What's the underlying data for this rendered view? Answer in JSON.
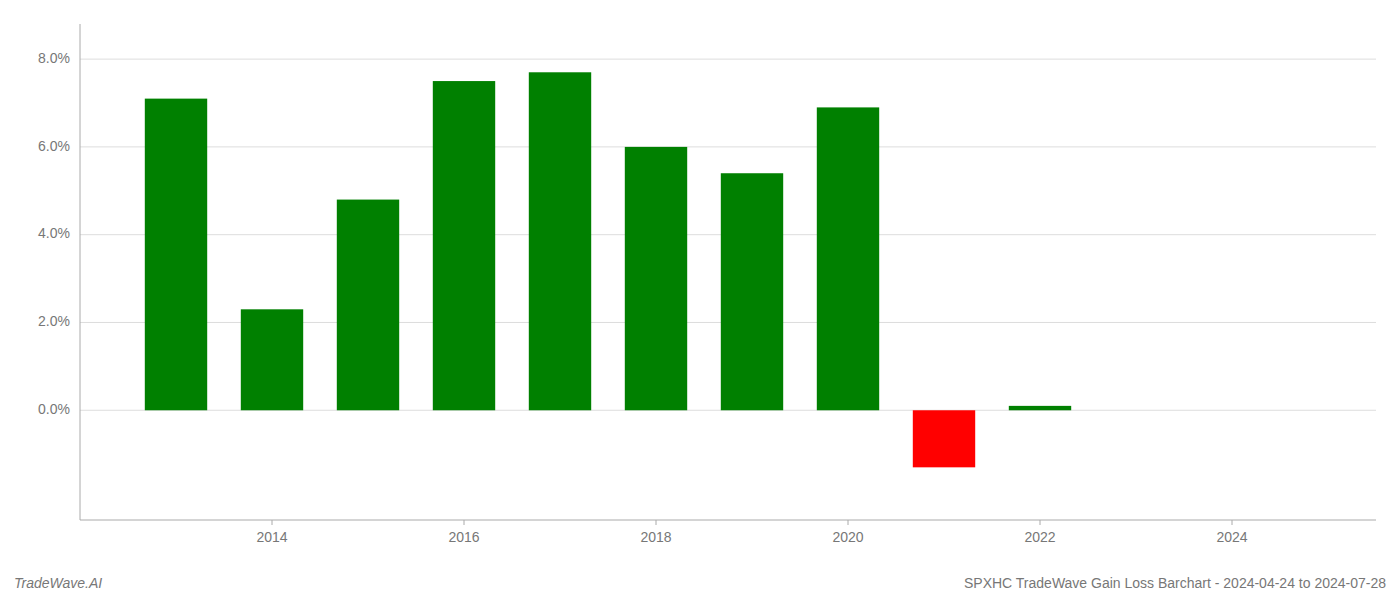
{
  "chart_data": {
    "type": "bar",
    "title": "SPXHC TradeWave Gain Loss Barchart - 2024-04-24 to 2024-07-28",
    "annotations": [
      "TradeWave.AI"
    ],
    "x": [
      2013,
      2014,
      2015,
      2016,
      2017,
      2018,
      2019,
      2020,
      2021,
      2022,
      2023
    ],
    "values": [
      0.071,
      0.023,
      0.048,
      0.075,
      0.077,
      0.06,
      0.054,
      0.069,
      -0.013,
      0.001,
      0.0
    ],
    "colors": [
      "#008000",
      "#008000",
      "#008000",
      "#008000",
      "#008000",
      "#008000",
      "#008000",
      "#008000",
      "#ff0000",
      "#008000",
      "#008000"
    ],
    "xlim": [
      2012.0,
      2025.5
    ],
    "xticks": [
      2014,
      2016,
      2018,
      2020,
      2022,
      2024
    ],
    "ylim": [
      -0.025,
      0.088
    ],
    "yticks": [
      {
        "value": 0.0,
        "label": "0.0%"
      },
      {
        "value": 0.02,
        "label": "2.0%"
      },
      {
        "value": 0.04,
        "label": "4.0%"
      },
      {
        "value": 0.06,
        "label": "6.0%"
      },
      {
        "value": 0.08,
        "label": "8.0%"
      }
    ],
    "grid": true
  }
}
